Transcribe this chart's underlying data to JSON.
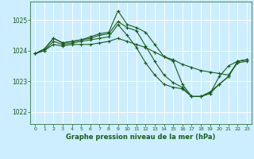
{
  "title": "Graphe pression niveau de la mer (hPa)",
  "background_color": "#cceeff",
  "line_color": "#1a5c1a",
  "grid_color": "#ffffff",
  "xlim": [
    -0.5,
    23.5
  ],
  "ylim": [
    1021.6,
    1025.6
  ],
  "yticks": [
    1022,
    1023,
    1024,
    1025
  ],
  "xticks": [
    0,
    1,
    2,
    3,
    4,
    5,
    6,
    7,
    8,
    9,
    10,
    11,
    12,
    13,
    14,
    15,
    16,
    17,
    18,
    19,
    20,
    21,
    22,
    23
  ],
  "series": [
    {
      "x": [
        0,
        1,
        2,
        3,
        4,
        5,
        6,
        7,
        8,
        9,
        10,
        11,
        12,
        13,
        14,
        15,
        16,
        17,
        18,
        19,
        20,
        21,
        22,
        23
      ],
      "y": [
        1023.9,
        1024.05,
        1024.4,
        1024.25,
        1024.3,
        1024.35,
        1024.45,
        1024.55,
        1024.6,
        1025.3,
        1024.85,
        1024.75,
        1024.6,
        1024.2,
        1023.8,
        1023.65,
        1022.9,
        1022.5,
        1022.5,
        1022.6,
        1023.15,
        1023.5,
        1023.65,
        1023.7
      ]
    },
    {
      "x": [
        0,
        1,
        2,
        3,
        4,
        5,
        6,
        7,
        8,
        9,
        10,
        11,
        12,
        13,
        14,
        15,
        16,
        17,
        18,
        19,
        20,
        21,
        22,
        23
      ],
      "y": [
        1023.9,
        1024.05,
        1024.4,
        1024.25,
        1024.3,
        1024.35,
        1024.4,
        1024.5,
        1024.55,
        1024.95,
        1024.75,
        1024.65,
        1024.15,
        1023.65,
        1023.2,
        1022.95,
        1022.8,
        1022.5,
        1022.5,
        1022.6,
        1022.9,
        1023.15,
        1023.65,
        1023.7
      ]
    },
    {
      "x": [
        0,
        1,
        2,
        3,
        4,
        5,
        6,
        7,
        8,
        9,
        10,
        11,
        12,
        13,
        14,
        15,
        16,
        17,
        18,
        19,
        20,
        21,
        22,
        23
      ],
      "y": [
        1023.9,
        1024.0,
        1024.3,
        1024.2,
        1024.25,
        1024.3,
        1024.35,
        1024.4,
        1024.45,
        1024.85,
        1024.5,
        1024.1,
        1023.6,
        1023.2,
        1022.9,
        1022.8,
        1022.75,
        1022.5,
        1022.5,
        1022.65,
        1022.9,
        1023.15,
        1023.65,
        1023.7
      ]
    },
    {
      "x": [
        0,
        1,
        2,
        3,
        4,
        5,
        6,
        7,
        8,
        9,
        10,
        11,
        12,
        13,
        14,
        15,
        16,
        17,
        18,
        19,
        20,
        21,
        22,
        23
      ],
      "y": [
        1023.9,
        1024.0,
        1024.2,
        1024.15,
        1024.2,
        1024.2,
        1024.2,
        1024.25,
        1024.3,
        1024.4,
        1024.3,
        1024.2,
        1024.1,
        1023.95,
        1023.8,
        1023.7,
        1023.55,
        1023.45,
        1023.35,
        1023.3,
        1023.25,
        1023.2,
        1023.6,
        1023.65
      ]
    }
  ],
  "fig_width": 3.2,
  "fig_height": 2.0,
  "dpi": 100
}
